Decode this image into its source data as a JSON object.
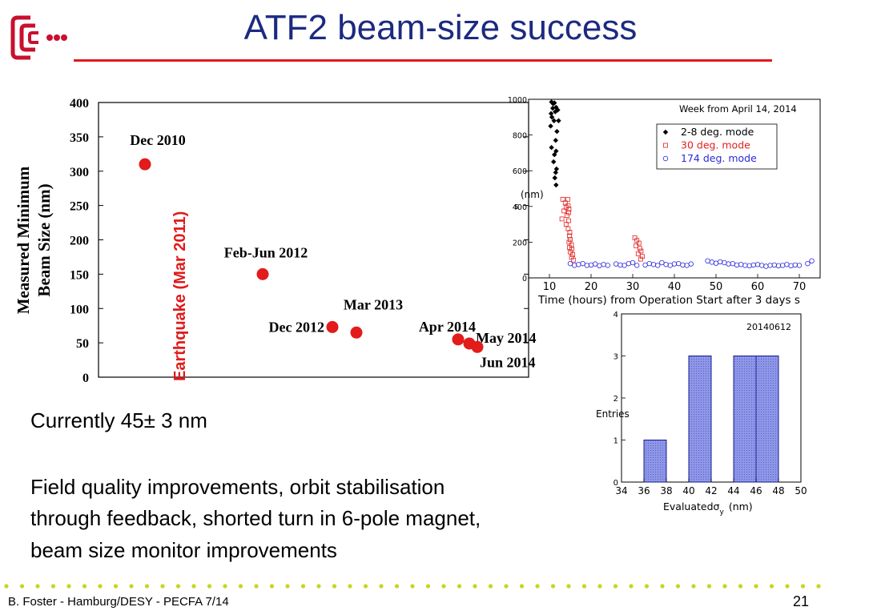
{
  "slide": {
    "title": "ATF2 beam-size success",
    "footer": "B. Foster - Hamburg/DESY -  PECFA 7/14",
    "page_number": "21",
    "colors": {
      "title": "#1c2a80",
      "accent": "#e11a1a",
      "hist_fill": "#8e96e8"
    },
    "logo_icon": "lc-logo-icon"
  },
  "text": {
    "current": "Currently 45± 3 nm",
    "line1": "Field quality improvements, orbit stabilisation",
    "line2": "through feedback, shorted turn in 6-pole magnet,",
    "line3": "beam size monitor improvements"
  },
  "chart_data": [
    {
      "type": "scatter",
      "ylabel_line1": "Measured Minimum",
      "ylabel_line2": "Beam Size (nm)",
      "ylim": [
        0,
        400
      ],
      "yticks": [
        0,
        50,
        100,
        150,
        200,
        250,
        300,
        350,
        400
      ],
      "annotation": "Earthquake (Mar 2011)",
      "points": [
        {
          "label": "Dec 2010",
          "y": 310
        },
        {
          "label": "Feb-Jun 2012",
          "y": 150
        },
        {
          "label": "Dec 2012",
          "y": 73
        },
        {
          "label": "Mar 2013",
          "y": 65
        },
        {
          "label": "Apr 2014",
          "y": 55
        },
        {
          "label": "May 2014",
          "y": 49
        },
        {
          "label": "Jun 2014",
          "y": 44
        }
      ]
    },
    {
      "type": "scatter",
      "title": "Week from April 14, 2014",
      "xlabel": "Time (hours) from Operation Start after 3 days s",
      "ylabel": "(nm)",
      "ylabel_sub": "s",
      "xlim": [
        5,
        75
      ],
      "ylim": [
        0,
        1000
      ],
      "xticks": [
        10,
        20,
        30,
        40,
        50,
        60,
        70
      ],
      "yticks": [
        0,
        200,
        400,
        600,
        800,
        1000
      ],
      "legend_position": "top-right",
      "series": [
        {
          "name": "2-8 deg. mode",
          "color": "#000000",
          "marker": "diamond",
          "points": [
            [
              10.5,
              985
            ],
            [
              10.9,
              975
            ],
            [
              11.2,
              980
            ],
            [
              10.8,
              950
            ],
            [
              11.6,
              955
            ],
            [
              10.4,
              920
            ],
            [
              11.4,
              930
            ],
            [
              12.0,
              940
            ],
            [
              10.6,
              900
            ],
            [
              11.1,
              880
            ],
            [
              12.2,
              880
            ],
            [
              10.3,
              850
            ],
            [
              11.8,
              820
            ],
            [
              11.5,
              770
            ],
            [
              10.5,
              730
            ],
            [
              11.6,
              710
            ],
            [
              11.2,
              690
            ],
            [
              11.0,
              650
            ],
            [
              11.7,
              610
            ],
            [
              11.5,
              590
            ],
            [
              11.3,
              560
            ],
            [
              11.6,
              520
            ]
          ]
        },
        {
          "name": "30 deg. mode",
          "color": "#e02020",
          "marker": "square",
          "points": [
            [
              13.2,
              440
            ],
            [
              14.4,
              440
            ],
            [
              13.8,
              420
            ],
            [
              14.5,
              405
            ],
            [
              14.0,
              395
            ],
            [
              14.7,
              385
            ],
            [
              13.5,
              375
            ],
            [
              14.6,
              365
            ],
            [
              14.2,
              350
            ],
            [
              13.0,
              330
            ],
            [
              14.6,
              320
            ],
            [
              14.0,
              300
            ],
            [
              14.5,
              275
            ],
            [
              14.9,
              255
            ],
            [
              14.8,
              235
            ],
            [
              15.0,
              215
            ],
            [
              14.7,
              200
            ],
            [
              15.3,
              185
            ],
            [
              14.8,
              170
            ],
            [
              15.4,
              160
            ],
            [
              15.0,
              145
            ],
            [
              15.6,
              130
            ],
            [
              15.3,
              115
            ],
            [
              15.8,
              100
            ],
            [
              30.5,
              225
            ],
            [
              31.0,
              210
            ],
            [
              31.5,
              195
            ],
            [
              30.8,
              180
            ],
            [
              31.7,
              165
            ],
            [
              32.0,
              150
            ],
            [
              31.3,
              135
            ],
            [
              32.3,
              120
            ],
            [
              31.9,
              105
            ]
          ]
        },
        {
          "name": "174 deg. mode",
          "color": "#2a2ad8",
          "marker": "circle",
          "points": [
            [
              15,
              80
            ],
            [
              16,
              70
            ],
            [
              17,
              75
            ],
            [
              18,
              80
            ],
            [
              19,
              70
            ],
            [
              20,
              72
            ],
            [
              21,
              78
            ],
            [
              22,
              68
            ],
            [
              23,
              75
            ],
            [
              24,
              70
            ],
            [
              26,
              78
            ],
            [
              27,
              72
            ],
            [
              28,
              70
            ],
            [
              29,
              80
            ],
            [
              30,
              85
            ],
            [
              31,
              70
            ],
            [
              33,
              72
            ],
            [
              34,
              80
            ],
            [
              35,
              75
            ],
            [
              36,
              70
            ],
            [
              37,
              85
            ],
            [
              38,
              75
            ],
            [
              39,
              70
            ],
            [
              40,
              78
            ],
            [
              41,
              80
            ],
            [
              42,
              72
            ],
            [
              43,
              70
            ],
            [
              44,
              78
            ],
            [
              48,
              95
            ],
            [
              49,
              88
            ],
            [
              50,
              82
            ],
            [
              51,
              90
            ],
            [
              52,
              85
            ],
            [
              53,
              78
            ],
            [
              54,
              80
            ],
            [
              55,
              72
            ],
            [
              56,
              75
            ],
            [
              57,
              70
            ],
            [
              58,
              68
            ],
            [
              59,
              72
            ],
            [
              60,
              75
            ],
            [
              61,
              70
            ],
            [
              62,
              65
            ],
            [
              63,
              70
            ],
            [
              64,
              72
            ],
            [
              65,
              68
            ],
            [
              66,
              70
            ],
            [
              67,
              75
            ],
            [
              68,
              68
            ],
            [
              69,
              72
            ],
            [
              70,
              70
            ],
            [
              72,
              80
            ],
            [
              73,
              95
            ]
          ]
        }
      ]
    },
    {
      "type": "bar",
      "title": "20140612",
      "xlabel": "Evaluated",
      "xlabel_sigma": "σ",
      "xlabel_sub": "y",
      "xlabel_unit": "(nm)",
      "ylabel": "Entries",
      "xlim": [
        34,
        50
      ],
      "ylim": [
        0,
        4
      ],
      "xticks": [
        34,
        36,
        38,
        40,
        42,
        44,
        46,
        48,
        50
      ],
      "yticks": [
        0,
        1,
        2,
        3,
        4
      ],
      "bins": [
        {
          "from": 36,
          "to": 38,
          "value": 1
        },
        {
          "from": 40,
          "to": 42,
          "value": 3
        },
        {
          "from": 44,
          "to": 46,
          "value": 3
        },
        {
          "from": 46,
          "to": 48,
          "value": 3
        }
      ]
    }
  ]
}
